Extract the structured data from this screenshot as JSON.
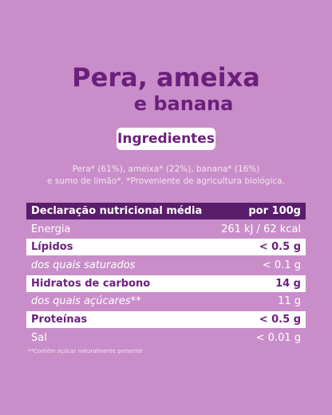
{
  "header": {
    "title_line1": "Pera, ameixa",
    "title_line2": "e banana",
    "badge": "Ingredientes"
  },
  "ingredients": {
    "line1": "Pera* (61%), ameixa* (22%), banana* (16%)",
    "line2": "e sumo de limão*. *Proveniente de agricultura biológica."
  },
  "table": {
    "header": [
      "Declaração nutricional média",
      "por 100g"
    ],
    "rows": [
      [
        "Energia",
        "261 kJ / 62 kcal"
      ],
      [
        "Lípidos",
        "< 0.5 g"
      ],
      [
        "dos quais saturados",
        "< 0.1 g"
      ],
      [
        "Hidratos de carbono",
        "14 g"
      ],
      [
        "dos quais açúcares**",
        "11 g"
      ],
      [
        "Proteínas",
        "< 0.5 g"
      ],
      [
        "Sal",
        "< 0.01 g"
      ]
    ]
  },
  "footnote": "**Contém açúcar naturalmente presente"
}
